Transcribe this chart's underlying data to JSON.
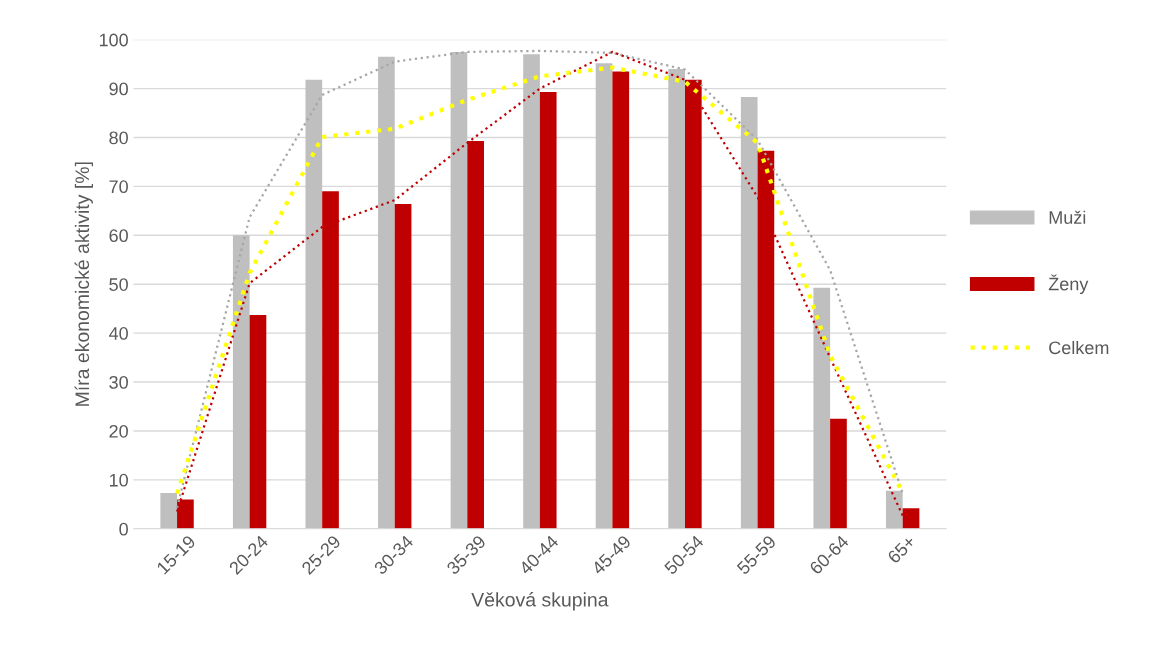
{
  "chart_data": {
    "type": "bar",
    "ylabel": "Míra ekonomické aktivity [%]",
    "xlabel": "Věková skupina",
    "categories": [
      "15-19",
      "20-24",
      "25-29",
      "30-34",
      "35-39",
      "40-44",
      "45-49",
      "50-54",
      "55-59",
      "60-64",
      "65+"
    ],
    "series": [
      {
        "name": "Muži",
        "color": "#bfbfbf",
        "values": [
          7.3,
          60,
          91.8,
          96.5,
          97.5,
          97,
          95.2,
          94,
          88.3,
          49.3,
          7.8
        ]
      },
      {
        "name": "Ženy",
        "color": "#c00000",
        "values": [
          6,
          43.7,
          69,
          66.4,
          79.3,
          89.3,
          93.5,
          91.8,
          77.3,
          22.5,
          4.2
        ]
      },
      {
        "name": "Celkem",
        "type": "line",
        "color": "#ffff00",
        "line_style": "dotted",
        "values": [
          7.2,
          52.3,
          80.1,
          81.8,
          87.7,
          92.5,
          94.3,
          91.4,
          78.9,
          35.5,
          7.4
        ]
      },
      {
        "type": "line",
        "color": "#a6a6a6",
        "line_style": "dotted",
        "values": [
          4.3,
          63.7,
          88.7,
          95.5,
          97.5,
          97.7,
          97.3,
          93.9,
          79.5,
          52.9,
          7.2
        ]
      },
      {
        "type": "line",
        "color": "#c00000",
        "line_style": "dotted",
        "values": [
          3.5,
          50.2,
          61.7,
          67.2,
          78.9,
          90,
          97.5,
          91.8,
          67.8,
          35,
          2.7
        ]
      }
    ],
    "ylim": [
      0,
      100
    ],
    "yticks": [
      0,
      10,
      20,
      30,
      40,
      50,
      60,
      70,
      80,
      90,
      100
    ],
    "grid": "y",
    "legend": "right",
    "marker": "none"
  }
}
